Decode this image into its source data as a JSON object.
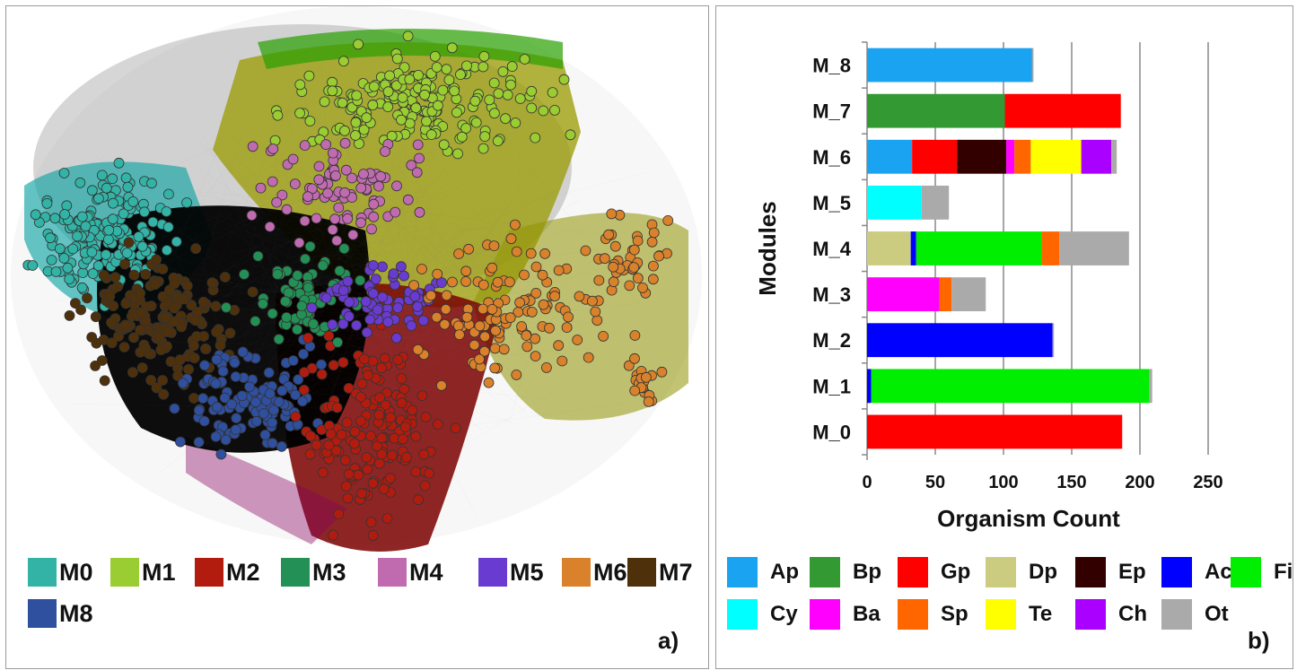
{
  "panel_a": {
    "label": "a)",
    "legend": [
      {
        "label": "M0",
        "color": "#33b3a6"
      },
      {
        "label": "M1",
        "color": "#9acd32"
      },
      {
        "label": "M2",
        "color": "#b21c0e"
      },
      {
        "label": "M3",
        "color": "#239155"
      },
      {
        "label": "M4",
        "color": "#c06bb0"
      },
      {
        "label": "M5",
        "color": "#6a3bd0"
      },
      {
        "label": "M6",
        "color": "#d9822b"
      },
      {
        "label": "M7",
        "color": "#4e300b"
      },
      {
        "label": "M8",
        "color": "#2f4f9f"
      }
    ]
  },
  "panel_b": {
    "label": "b)",
    "legend": [
      {
        "label": "Ap",
        "color": "#1aa3f0"
      },
      {
        "label": "Bp",
        "color": "#339933"
      },
      {
        "label": "Gp",
        "color": "#ff0000"
      },
      {
        "label": "Dp",
        "color": "#cccc80"
      },
      {
        "label": "Ep",
        "color": "#330000"
      },
      {
        "label": "Ac",
        "color": "#0000ff"
      },
      {
        "label": "Fi",
        "color": "#00ee00"
      },
      {
        "label": "Cy",
        "color": "#00ffff"
      },
      {
        "label": "Ba",
        "color": "#ff00ff"
      },
      {
        "label": "Sp",
        "color": "#ff6600"
      },
      {
        "label": "Te",
        "color": "#ffff00"
      },
      {
        "label": "Ch",
        "color": "#aa00ff"
      },
      {
        "label": "Ot",
        "color": "#aaaaaa"
      }
    ]
  },
  "chart_data": {
    "type": "bar",
    "orientation": "horizontal",
    "stacked": true,
    "categories": [
      "M_0",
      "M_1",
      "M_2",
      "M_3",
      "M_4",
      "M_5",
      "M_6",
      "M_7",
      "M_8"
    ],
    "xlabel": "Organism Count",
    "ylabel": "Modules",
    "xlim": [
      0,
      250
    ],
    "xticks": [
      0,
      50,
      100,
      150,
      200,
      250
    ],
    "grid": "vertical",
    "legend_position": "bottom",
    "series": [
      {
        "name": "Ap",
        "values": [
          0,
          0,
          0,
          0,
          0,
          0,
          33,
          0,
          121
        ]
      },
      {
        "name": "Bp",
        "values": [
          0,
          0,
          0,
          0,
          0,
          0,
          0,
          101,
          0
        ]
      },
      {
        "name": "Gp",
        "values": [
          187,
          0,
          0,
          0,
          0,
          0,
          33,
          85,
          0
        ]
      },
      {
        "name": "Dp",
        "values": [
          0,
          0,
          0,
          0,
          32,
          0,
          0,
          0,
          0
        ]
      },
      {
        "name": "Ep",
        "values": [
          0,
          0,
          0,
          0,
          0,
          0,
          36,
          0,
          0
        ]
      },
      {
        "name": "Ac",
        "values": [
          0,
          3,
          136,
          0,
          4,
          0,
          0,
          0,
          0
        ]
      },
      {
        "name": "Fi",
        "values": [
          0,
          204,
          0,
          0,
          92,
          0,
          0,
          0,
          0
        ]
      },
      {
        "name": "Cy",
        "values": [
          0,
          0,
          0,
          0,
          0,
          40,
          0,
          0,
          0
        ]
      },
      {
        "name": "Ba",
        "values": [
          0,
          0,
          0,
          53,
          0,
          0,
          6,
          0,
          0
        ]
      },
      {
        "name": "Sp",
        "values": [
          0,
          0,
          0,
          9,
          13,
          0,
          12,
          0,
          0
        ]
      },
      {
        "name": "Te",
        "values": [
          0,
          0,
          0,
          0,
          0,
          0,
          37,
          0,
          0
        ]
      },
      {
        "name": "Ch",
        "values": [
          0,
          0,
          0,
          0,
          0,
          0,
          22,
          0,
          0
        ]
      },
      {
        "name": "Ot",
        "values": [
          0,
          2,
          1,
          25,
          51,
          20,
          4,
          0,
          1
        ]
      }
    ]
  }
}
